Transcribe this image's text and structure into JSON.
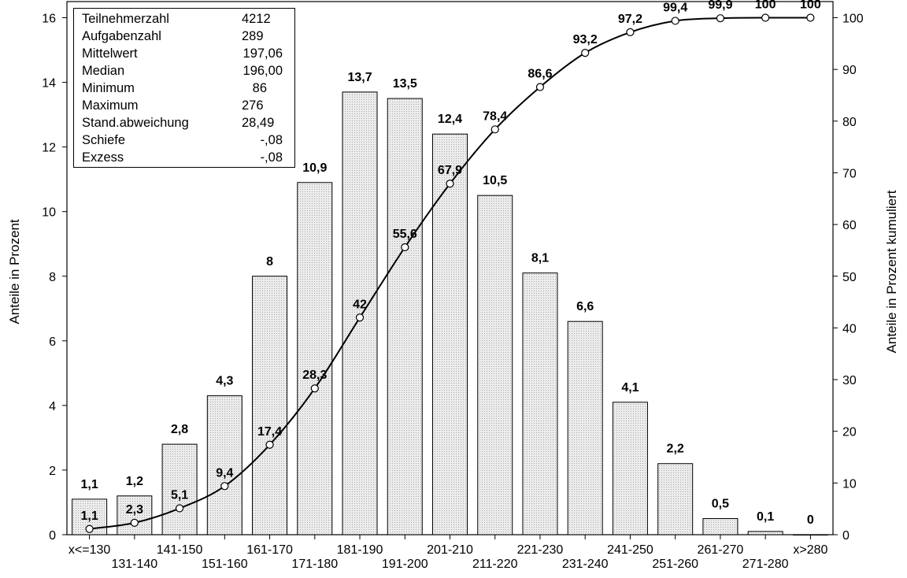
{
  "chart_data": {
    "type": "bar",
    "categories": [
      "x<=130",
      "131-140",
      "141-150",
      "151-160",
      "161-170",
      "171-180",
      "181-190",
      "191-200",
      "201-210",
      "211-220",
      "221-230",
      "231-240",
      "241-250",
      "251-260",
      "261-270",
      "271-280",
      "x>280"
    ],
    "series": [
      {
        "values": [
          1.1,
          1.2,
          2.8,
          4.3,
          8,
          10.9,
          13.7,
          13.5,
          12.4,
          10.5,
          8.1,
          6.6,
          4.1,
          2.2,
          0.5,
          0.1,
          0
        ]
      },
      {
        "type": "line",
        "axis": "right",
        "values": [
          1.1,
          2.3,
          5.1,
          9.4,
          17.4,
          28.3,
          42,
          55.6,
          67.9,
          78.4,
          86.6,
          93.2,
          97.2,
          99.4,
          99.9,
          100,
          100
        ]
      }
    ],
    "bar_labels": [
      "1,1",
      "1,2",
      "2,8",
      "4,3",
      "8",
      "10,9",
      "13,7",
      "13,5",
      "12,4",
      "10,5",
      "8,1",
      "6,6",
      "4,1",
      "2,2",
      "0,5",
      "0,1",
      "0"
    ],
    "line_labels": [
      "1,1",
      "2,3",
      "5,1",
      "9,4",
      "17,4",
      "28,3",
      "42",
      "55,6",
      "67,9",
      "78,4",
      "86,6",
      "93,2",
      "97,2",
      "99,4",
      "99,9",
      "100",
      "100"
    ],
    "ylabel": "Anteile in Prozent",
    "y2label": "Anteile in Prozent kumuliert",
    "ylim": [
      0,
      16.5
    ],
    "y2lim": [
      0,
      103.125
    ],
    "yticks": [
      0,
      2,
      4,
      6,
      8,
      10,
      12,
      14,
      16
    ],
    "y2ticks": [
      0,
      10,
      20,
      30,
      40,
      50,
      60,
      70,
      80,
      90,
      100
    ],
    "grid": false,
    "colors": {
      "bar_fill": "#e4e4e4",
      "bar_stroke": "#000000",
      "line": "#000000",
      "marker_fill": "#ffffff"
    }
  },
  "stats": [
    {
      "label": "Teilnehmerzahl",
      "value": "4212"
    },
    {
      "label": "Aufgabenzahl",
      "value": "289"
    },
    {
      "label": "Mittelwert",
      "value": "197,06"
    },
    {
      "label": "Median",
      "value": "196,00"
    },
    {
      "label": "Minimum",
      "value": "86"
    },
    {
      "label": "Maximum",
      "value": "276"
    },
    {
      "label": "Stand.abweichung",
      "value": "28,49"
    },
    {
      "label": "Schiefe",
      "value": "-,08"
    },
    {
      "label": "Exzess",
      "value": "-,08"
    }
  ]
}
